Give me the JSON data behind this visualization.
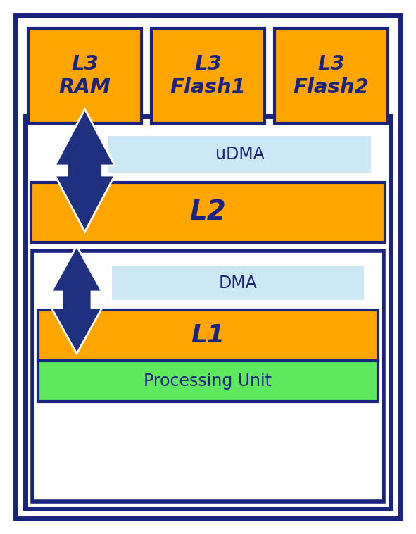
{
  "bg_color": "#ffffff",
  "orange_color": "#FFA500",
  "dark_blue": "#1a237e",
  "light_blue": "#cce8f4",
  "green_color": "#5de85d",
  "arrow_color": "#1f3080",
  "l3_ram_label": "L3\nRAM",
  "l3_flash1_label": "L3\nFlash1",
  "l3_flash2_label": "L3\nFlash2",
  "l2_label": "L2",
  "l1_label": "L1",
  "udma_label": "uDMA",
  "dma_label": "DMA",
  "proc_label": "Processing Unit",
  "fig_w": 5.91,
  "fig_h": 7.58,
  "dpi": 100
}
